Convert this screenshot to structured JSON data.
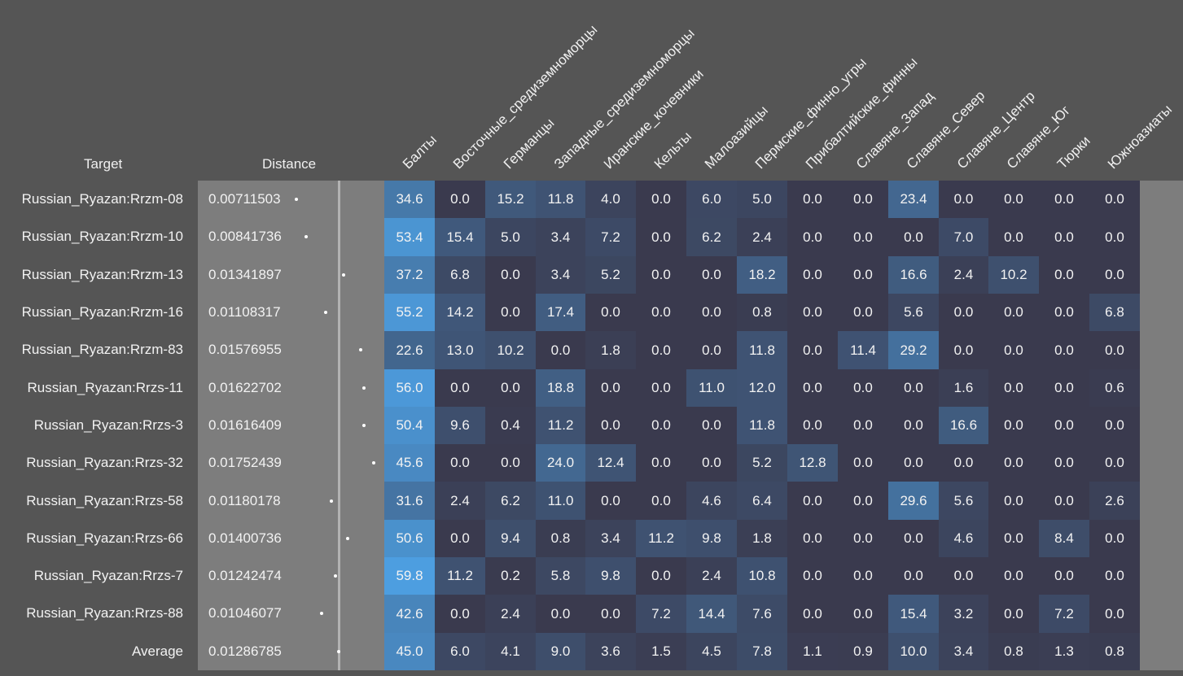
{
  "headers": {
    "target": "Target",
    "distance": "Distance"
  },
  "chart_data": {
    "type": "heatmap",
    "columns": [
      "Балты",
      "Восточные_средиземноморцы",
      "Германцы",
      "Западные_средиземноморцы",
      "Иранские_кочевники",
      "Кельты",
      "Малоазийцы",
      "Пермские_финно_угры",
      "Прибалтийские_финны",
      "Славяне_Запад",
      "Славяне_Север",
      "Славяне_Центр",
      "Славяне_Юг",
      "Тюрки",
      "Южноазиаты"
    ],
    "rows": [
      {
        "target": "Russian_Ryazan:Rrzm-08",
        "distance": "0.00711503",
        "values": [
          "34.6",
          "0.0",
          "15.2",
          "11.8",
          "4.0",
          "0.0",
          "6.0",
          "5.0",
          "0.0",
          "0.0",
          "23.4",
          "0.0",
          "0.0",
          "0.0",
          "0.0"
        ]
      },
      {
        "target": "Russian_Ryazan:Rrzm-10",
        "distance": "0.00841736",
        "values": [
          "53.4",
          "15.4",
          "5.0",
          "3.4",
          "7.2",
          "0.0",
          "6.2",
          "2.4",
          "0.0",
          "0.0",
          "0.0",
          "7.0",
          "0.0",
          "0.0",
          "0.0"
        ]
      },
      {
        "target": "Russian_Ryazan:Rrzm-13",
        "distance": "0.01341897",
        "values": [
          "37.2",
          "6.8",
          "0.0",
          "3.4",
          "5.2",
          "0.0",
          "0.0",
          "18.2",
          "0.0",
          "0.0",
          "16.6",
          "2.4",
          "10.2",
          "0.0",
          "0.0"
        ]
      },
      {
        "target": "Russian_Ryazan:Rrzm-16",
        "distance": "0.01108317",
        "values": [
          "55.2",
          "14.2",
          "0.0",
          "17.4",
          "0.0",
          "0.0",
          "0.0",
          "0.8",
          "0.0",
          "0.0",
          "5.6",
          "0.0",
          "0.0",
          "0.0",
          "6.8"
        ]
      },
      {
        "target": "Russian_Ryazan:Rrzm-83",
        "distance": "0.01576955",
        "values": [
          "22.6",
          "13.0",
          "10.2",
          "0.0",
          "1.8",
          "0.0",
          "0.0",
          "11.8",
          "0.0",
          "11.4",
          "29.2",
          "0.0",
          "0.0",
          "0.0",
          "0.0"
        ]
      },
      {
        "target": "Russian_Ryazan:Rrzs-11",
        "distance": "0.01622702",
        "values": [
          "56.0",
          "0.0",
          "0.0",
          "18.8",
          "0.0",
          "0.0",
          "11.0",
          "12.0",
          "0.0",
          "0.0",
          "0.0",
          "1.6",
          "0.0",
          "0.0",
          "0.6"
        ]
      },
      {
        "target": "Russian_Ryazan:Rrzs-3",
        "distance": "0.01616409",
        "values": [
          "50.4",
          "9.6",
          "0.4",
          "11.2",
          "0.0",
          "0.0",
          "0.0",
          "11.8",
          "0.0",
          "0.0",
          "0.0",
          "16.6",
          "0.0",
          "0.0",
          "0.0"
        ]
      },
      {
        "target": "Russian_Ryazan:Rrzs-32",
        "distance": "0.01752439",
        "values": [
          "45.6",
          "0.0",
          "0.0",
          "24.0",
          "12.4",
          "0.0",
          "0.0",
          "5.2",
          "12.8",
          "0.0",
          "0.0",
          "0.0",
          "0.0",
          "0.0",
          "0.0"
        ]
      },
      {
        "target": "Russian_Ryazan:Rrzs-58",
        "distance": "0.01180178",
        "values": [
          "31.6",
          "2.4",
          "6.2",
          "11.0",
          "0.0",
          "0.0",
          "4.6",
          "6.4",
          "0.0",
          "0.0",
          "29.6",
          "5.6",
          "0.0",
          "0.0",
          "2.6"
        ]
      },
      {
        "target": "Russian_Ryazan:Rrzs-66",
        "distance": "0.01400736",
        "values": [
          "50.6",
          "0.0",
          "9.4",
          "0.8",
          "3.4",
          "11.2",
          "9.8",
          "1.8",
          "0.0",
          "0.0",
          "0.0",
          "4.6",
          "0.0",
          "8.4",
          "0.0"
        ]
      },
      {
        "target": "Russian_Ryazan:Rrzs-7",
        "distance": "0.01242474",
        "values": [
          "59.8",
          "11.2",
          "0.2",
          "5.8",
          "9.8",
          "0.0",
          "2.4",
          "10.8",
          "0.0",
          "0.0",
          "0.0",
          "0.0",
          "0.0",
          "0.0",
          "0.0"
        ]
      },
      {
        "target": "Russian_Ryazan:Rrzs-88",
        "distance": "0.01046077",
        "values": [
          "42.6",
          "0.0",
          "2.4",
          "0.0",
          "0.0",
          "7.2",
          "14.4",
          "7.6",
          "0.0",
          "0.0",
          "15.4",
          "3.2",
          "0.0",
          "7.2",
          "0.0"
        ]
      },
      {
        "target": "Average",
        "distance": "0.01286785",
        "values": [
          "45.0",
          "6.0",
          "4.1",
          "9.0",
          "3.6",
          "1.5",
          "4.5",
          "7.8",
          "1.1",
          "0.9",
          "10.0",
          "3.4",
          "0.8",
          "1.3",
          "0.8"
        ]
      }
    ],
    "color_scale": {
      "low": "#3a3a4e",
      "high": "#4d9ee0",
      "max": 60
    },
    "distance_range": [
      0,
      0.02
    ]
  }
}
